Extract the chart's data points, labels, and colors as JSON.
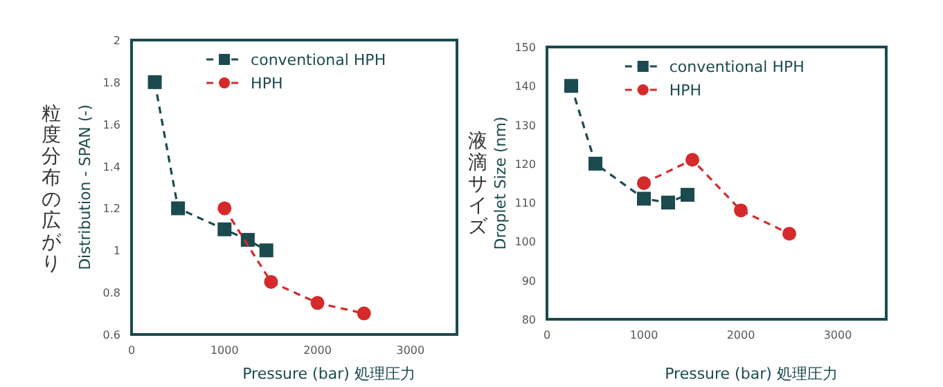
{
  "chart_data": [
    {
      "type": "line",
      "xlabel": "Pressure (bar) 処理圧力",
      "ylabel": "Distribution - SPAN (-)",
      "annotations": [
        "粒度分布の広がり"
      ],
      "xlim": [
        0,
        3500
      ],
      "xticks": [
        0,
        1000,
        2000,
        3000
      ],
      "ylim": [
        0.6,
        2
      ],
      "yticks": [
        0.6,
        0.8,
        1,
        1.2,
        1.4,
        1.6,
        1.8,
        2
      ],
      "grid": false,
      "legend": "top right",
      "line_style": "dashed",
      "series": [
        {
          "name": "conventional HPH",
          "color": "#1b4a4f",
          "marker": "square",
          "x": [
            250,
            500,
            1000,
            1250,
            1450
          ],
          "values": [
            1.8,
            1.2,
            1.1,
            1.05,
            1.0
          ]
        },
        {
          "name": "HPH",
          "color": "#d42a2a",
          "marker": "circle",
          "x": [
            1000,
            1500,
            2000,
            2500
          ],
          "values": [
            1.2,
            0.85,
            0.75,
            0.7
          ]
        }
      ]
    },
    {
      "type": "line",
      "xlabel": "Pressure (bar) 処理圧力",
      "ylabel": "Droplet Size (nm)",
      "annotations": [
        "液滴サイズ"
      ],
      "xlim": [
        0,
        3500
      ],
      "xticks": [
        0,
        1000,
        2000,
        3000
      ],
      "ylim": [
        80,
        150
      ],
      "yticks": [
        80,
        90,
        100,
        110,
        120,
        130,
        140,
        150
      ],
      "grid": false,
      "legend": "top right",
      "line_style": "dashed",
      "series": [
        {
          "name": "conventional HPH",
          "color": "#1b4a4f",
          "marker": "square",
          "x": [
            250,
            500,
            1000,
            1250,
            1450
          ],
          "values": [
            140,
            120,
            111,
            110,
            112
          ]
        },
        {
          "name": "HPH",
          "color": "#d42a2a",
          "marker": "circle",
          "x": [
            1000,
            1500,
            2000,
            2500
          ],
          "values": [
            115,
            121,
            108,
            102
          ]
        }
      ]
    }
  ]
}
